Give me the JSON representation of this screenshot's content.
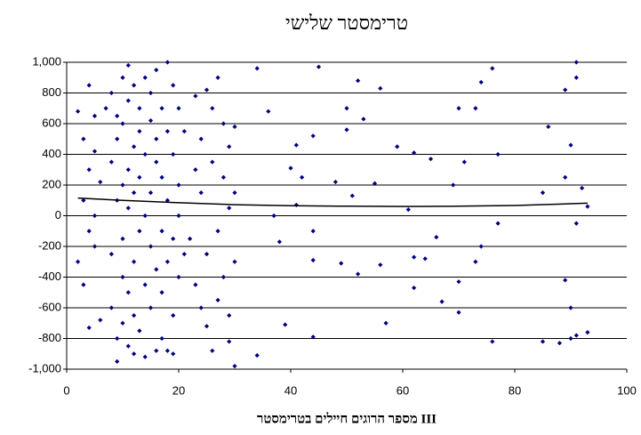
{
  "chart_data": {
    "type": "scatter",
    "title": "טרימסטר שלישי",
    "xlabel": "מספר הרוגים חיילים בטרימסטר III",
    "xlim": [
      0,
      100
    ],
    "xticks": [
      0,
      20,
      40,
      60,
      80,
      100
    ],
    "ylim": [
      -1000,
      1000
    ],
    "yticks": [
      {
        "value": 1000,
        "label": "1,000"
      },
      800,
      600,
      400,
      200,
      0,
      -200,
      -400,
      -600,
      -800,
      {
        "value": -1000,
        "label": "-1,000"
      }
    ],
    "grid": true,
    "series": [
      {
        "color": "#000080",
        "x": [
          2,
          2,
          3,
          3,
          3,
          4,
          4,
          4,
          4,
          5,
          5,
          5,
          5,
          6,
          6,
          7,
          8,
          8,
          8,
          8,
          9,
          9,
          9,
          9,
          9,
          10,
          10,
          10,
          10,
          10,
          10,
          11,
          11,
          11,
          11,
          11,
          11,
          12,
          12,
          12,
          12,
          12,
          12,
          13,
          13,
          13,
          13,
          13,
          14,
          14,
          14,
          14,
          14,
          15,
          15,
          15,
          15,
          15,
          16,
          16,
          16,
          16,
          16,
          17,
          17,
          17,
          17,
          17,
          18,
          18,
          18,
          18,
          18,
          19,
          19,
          19,
          19,
          19,
          20,
          20,
          20,
          20,
          21,
          21,
          22,
          23,
          23,
          23,
          24,
          24,
          24,
          25,
          25,
          25,
          26,
          26,
          26,
          27,
          27,
          27,
          28,
          28,
          28,
          29,
          29,
          29,
          29,
          30,
          30,
          30,
          30,
          34,
          34,
          36,
          37,
          38,
          39,
          40,
          41,
          41,
          42,
          44,
          44,
          44,
          44,
          45,
          48,
          49,
          50,
          50,
          51,
          52,
          52,
          53,
          55,
          56,
          56,
          57,
          59,
          61,
          62,
          62,
          62,
          64,
          65,
          66,
          67,
          69,
          70,
          70,
          70,
          71,
          73,
          73,
          74,
          74,
          76,
          76,
          77,
          77,
          85,
          85,
          86,
          88,
          89,
          89,
          89,
          90,
          90,
          90,
          91,
          91,
          91,
          91,
          92,
          93,
          93
        ],
        "y": [
          680,
          -300,
          500,
          -450,
          100,
          850,
          -730,
          300,
          -100,
          650,
          -200,
          0,
          420,
          -680,
          220,
          700,
          800,
          -600,
          -250,
          350,
          -950,
          500,
          100,
          -800,
          650,
          900,
          -400,
          200,
          -150,
          -700,
          600,
          980,
          -850,
          300,
          -500,
          50,
          750,
          -900,
          450,
          -300,
          150,
          850,
          -650,
          550,
          -100,
          -750,
          250,
          700,
          -920,
          400,
          -450,
          0,
          900,
          -200,
          620,
          -600,
          150,
          800,
          -880,
          350,
          -350,
          500,
          950,
          -100,
          700,
          -800,
          250,
          -500,
          1000,
          -300,
          550,
          -880,
          100,
          850,
          -650,
          400,
          -150,
          -900,
          700,
          -400,
          200,
          0,
          550,
          -250,
          -150,
          780,
          300,
          -450,
          -600,
          500,
          150,
          820,
          -720,
          -250,
          700,
          -880,
          350,
          900,
          -100,
          -550,
          600,
          250,
          -400,
          -650,
          450,
          50,
          -820,
          -980,
          580,
          -300,
          150,
          960,
          -910,
          680,
          0,
          -170,
          -710,
          310,
          70,
          460,
          250,
          520,
          -100,
          -290,
          -790,
          970,
          220,
          -310,
          700,
          560,
          130,
          880,
          -380,
          630,
          210,
          -320,
          830,
          -700,
          450,
          40,
          410,
          -470,
          -270,
          -280,
          370,
          -140,
          -560,
          200,
          700,
          -630,
          -430,
          350,
          -300,
          700,
          -200,
          870,
          960,
          -820,
          400,
          -50,
          -820,
          150,
          580,
          -830,
          820,
          -420,
          250,
          460,
          -600,
          -800,
          1000,
          900,
          -780,
          -50,
          180,
          -760,
          60
        ]
      }
    ],
    "trendline": {
      "color": "#000000",
      "x": [
        2,
        10,
        20,
        30,
        40,
        50,
        60,
        70,
        80,
        90,
        93
      ],
      "y": [
        115,
        100,
        85,
        72,
        65,
        62,
        60,
        62,
        67,
        78,
        82
      ]
    }
  }
}
